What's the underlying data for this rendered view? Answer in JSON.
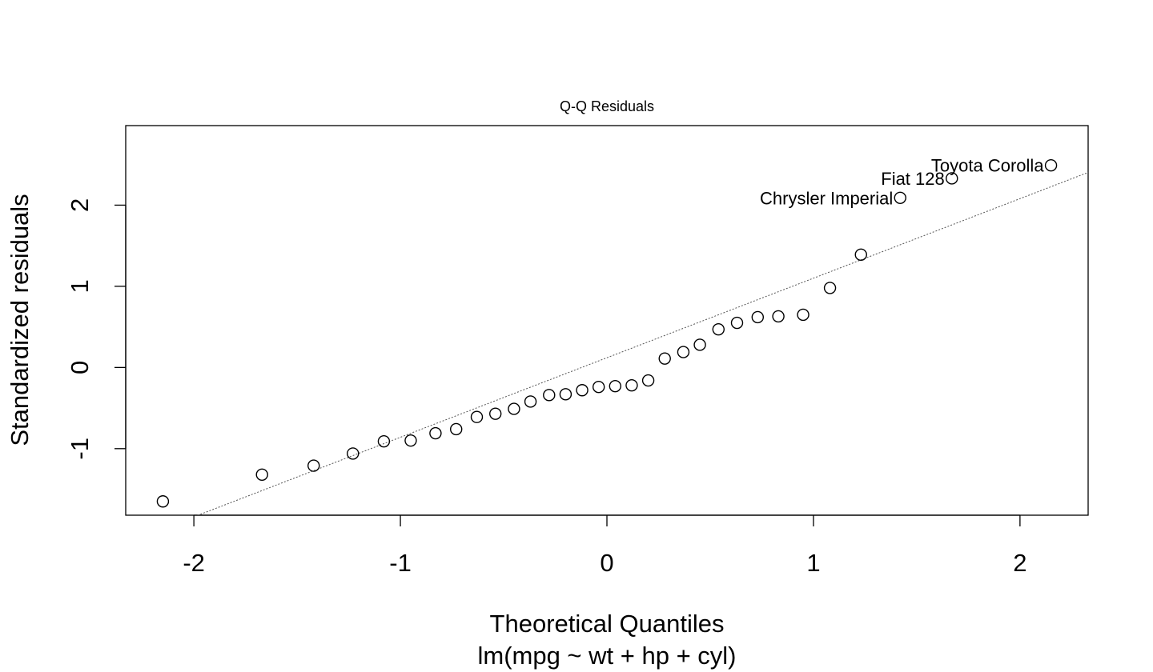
{
  "chart_data": {
    "type": "scatter",
    "title": "Q-Q Residuals",
    "xlabel": "Theoretical Quantiles",
    "subtitle": "lm(mpg ~ wt + hp + cyl)",
    "ylabel": "Standardized residuals",
    "xlim": [
      -2.33,
      2.33
    ],
    "ylim": [
      -1.82,
      2.98
    ],
    "xticks": [
      -2,
      -1,
      0,
      1,
      2
    ],
    "yticks": [
      -1,
      0,
      1,
      2
    ],
    "grid": false,
    "reference_line": {
      "slope": 0.98,
      "intercept": 0.12,
      "style": "dotted"
    },
    "points": [
      {
        "x": -2.15,
        "y": -1.65
      },
      {
        "x": -1.67,
        "y": -1.32
      },
      {
        "x": -1.42,
        "y": -1.21
      },
      {
        "x": -1.23,
        "y": -1.06
      },
      {
        "x": -1.08,
        "y": -0.91
      },
      {
        "x": -0.95,
        "y": -0.9
      },
      {
        "x": -0.83,
        "y": -0.81
      },
      {
        "x": -0.73,
        "y": -0.76
      },
      {
        "x": -0.63,
        "y": -0.61
      },
      {
        "x": -0.54,
        "y": -0.57
      },
      {
        "x": -0.45,
        "y": -0.51
      },
      {
        "x": -0.37,
        "y": -0.42
      },
      {
        "x": -0.28,
        "y": -0.34
      },
      {
        "x": -0.2,
        "y": -0.33
      },
      {
        "x": -0.12,
        "y": -0.28
      },
      {
        "x": -0.04,
        "y": -0.24
      },
      {
        "x": 0.04,
        "y": -0.23
      },
      {
        "x": 0.12,
        "y": -0.22
      },
      {
        "x": 0.2,
        "y": -0.16
      },
      {
        "x": 0.28,
        "y": 0.11
      },
      {
        "x": 0.37,
        "y": 0.19
      },
      {
        "x": 0.45,
        "y": 0.28
      },
      {
        "x": 0.54,
        "y": 0.47
      },
      {
        "x": 0.63,
        "y": 0.55
      },
      {
        "x": 0.73,
        "y": 0.62
      },
      {
        "x": 0.83,
        "y": 0.63
      },
      {
        "x": 0.95,
        "y": 0.65
      },
      {
        "x": 1.08,
        "y": 0.98
      },
      {
        "x": 1.23,
        "y": 1.39
      },
      {
        "x": 1.42,
        "y": 2.09,
        "label": "Chrysler Imperial"
      },
      {
        "x": 1.67,
        "y": 2.33,
        "label": "Fiat 128"
      },
      {
        "x": 2.15,
        "y": 2.49,
        "label": "Toyota Corolla"
      }
    ]
  }
}
